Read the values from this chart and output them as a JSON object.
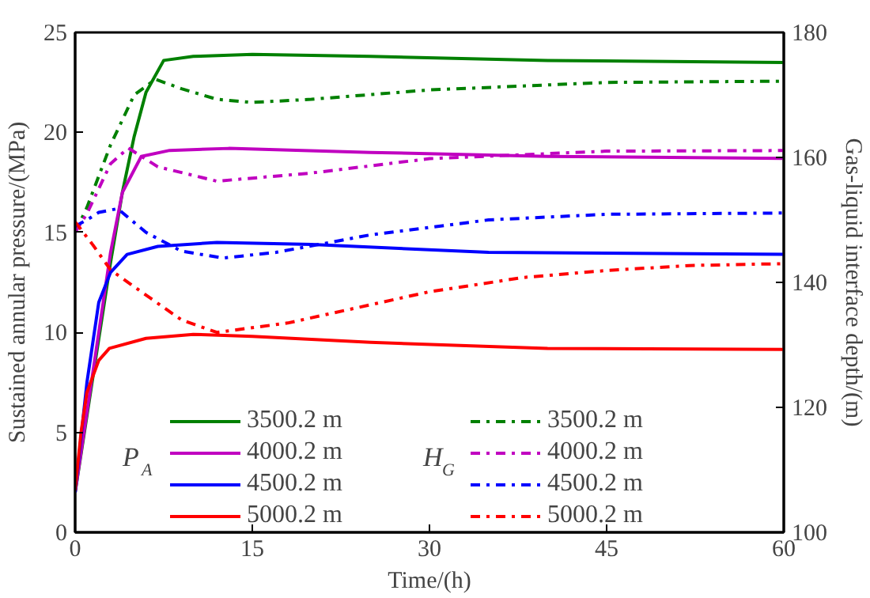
{
  "chart_data": {
    "type": "line",
    "xlabel": "Time/(h)",
    "ylabel": "Sustained annular pressure/(MPa)",
    "y2label": "Gas-liquid interface depth/(m)",
    "xlim": [
      0,
      60
    ],
    "xticks": [
      0,
      15,
      30,
      45,
      60
    ],
    "ylim": [
      0,
      25
    ],
    "yticks": [
      0,
      5,
      10,
      15,
      20,
      25
    ],
    "y2lim": [
      100,
      180
    ],
    "y2ticks": [
      100,
      120,
      140,
      160,
      180
    ],
    "grid": false,
    "legend": "bottom",
    "annotations": [
      "P$_{A}$",
      "H$_{G}$"
    ],
    "series": [
      {
        "name": "3500.2 m",
        "color": "#008000",
        "line_style": "solid",
        "x": [
          0,
          3,
          4,
          5,
          6,
          7.5,
          10,
          15,
          25,
          40,
          60
        ],
        "values": [
          2.0,
          13.5,
          17.0,
          19.8,
          22.0,
          23.6,
          23.8,
          23.9,
          23.8,
          23.6,
          23.5
        ]
      },
      {
        "name": "4000.2 m",
        "color": "#c000c0",
        "line_style": "solid",
        "x": [
          0,
          1,
          2,
          3,
          4,
          5.6,
          8,
          13,
          25,
          40,
          60
        ],
        "values": [
          2.0,
          6.0,
          10.0,
          14.0,
          17.0,
          18.8,
          19.1,
          19.2,
          19.0,
          18.8,
          18.7
        ]
      },
      {
        "name": "4500.2 m",
        "color": "#0000ff",
        "line_style": "solid",
        "x": [
          0,
          1,
          2,
          3,
          4.4,
          7,
          12,
          20,
          35,
          60
        ],
        "values": [
          2.0,
          7.5,
          11.5,
          13.0,
          13.9,
          14.3,
          14.5,
          14.4,
          14.0,
          13.9
        ]
      },
      {
        "name": "5000.2 m",
        "color": "#ff0000",
        "line_style": "solid",
        "x": [
          0,
          0.5,
          1,
          2,
          2.9,
          6,
          10,
          15,
          25,
          40,
          60
        ],
        "values": [
          2.1,
          5.0,
          7.0,
          8.6,
          9.2,
          9.7,
          9.9,
          9.8,
          9.5,
          9.2,
          9.15
        ]
      },
      {
        "name": "3500.2 m",
        "color": "#008000",
        "line_style": "dashed",
        "axis": "y2",
        "x": [
          0,
          1,
          2,
          3,
          4,
          5,
          6.8,
          9,
          12,
          15,
          20,
          30,
          45,
          60
        ],
        "values": [
          148,
          152,
          157,
          162,
          166,
          170,
          172.5,
          171,
          169.3,
          168.8,
          169.3,
          170.8,
          172,
          172.2
        ]
      },
      {
        "name": "4000.2 m",
        "color": "#c000c0",
        "line_style": "dashed",
        "axis": "y2",
        "x": [
          0,
          1,
          2,
          3,
          4.5,
          7,
          12,
          20,
          30,
          45,
          60
        ],
        "values": [
          148,
          151,
          155,
          159,
          161.5,
          158.5,
          156.2,
          157.5,
          159.8,
          161,
          161.1
        ]
      },
      {
        "name": "4500.2 m",
        "color": "#0000ff",
        "line_style": "dashed",
        "axis": "y2",
        "x": [
          0,
          1,
          2,
          3.6,
          6,
          9,
          12.5,
          17,
          25,
          35,
          45,
          60
        ],
        "values": [
          149,
          150,
          151.2,
          151.8,
          148,
          145,
          143.9,
          144.8,
          147.6,
          150,
          150.9,
          151.1
        ]
      },
      {
        "name": "5000.2 m",
        "color": "#ff0000",
        "line_style": "dashed",
        "axis": "y2",
        "x": [
          0,
          1.5,
          3,
          5.6,
          9,
          12,
          18,
          24,
          30,
          38,
          45,
          52,
          60
        ],
        "values": [
          149.7,
          146,
          142,
          138.5,
          134,
          132,
          133.5,
          136,
          138.5,
          140.8,
          141.9,
          142.7,
          143
        ]
      }
    ]
  }
}
